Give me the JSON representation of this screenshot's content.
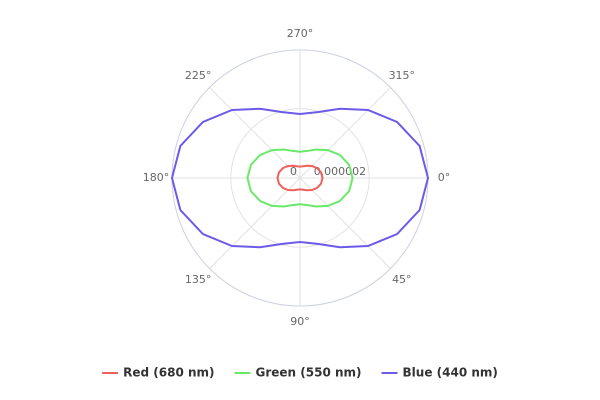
{
  "chart_data": {
    "type": "polar-line",
    "x": [
      0,
      15,
      30,
      45,
      60,
      75,
      90,
      105,
      120,
      135,
      150,
      165,
      180,
      195,
      210,
      225,
      240,
      255,
      270,
      285,
      300,
      315,
      330,
      345
    ],
    "xticks": [
      {
        "value": 0,
        "label": "0°"
      },
      {
        "value": 45,
        "label": "45°"
      },
      {
        "value": 90,
        "label": "90°"
      },
      {
        "value": 135,
        "label": "135°"
      },
      {
        "value": 180,
        "label": "180°"
      },
      {
        "value": 225,
        "label": "225°"
      },
      {
        "value": 270,
        "label": "270°"
      },
      {
        "value": 315,
        "label": "315°"
      }
    ],
    "rlim": [
      0,
      3.7e-06
    ],
    "rticks": [
      0,
      2e-06
    ],
    "grid": true,
    "legend": "bottom",
    "series": [
      {
        "name": "Red (680 nm)",
        "color": "#f0615b",
        "values": [
          6.5e-07,
          6.3e-07,
          5.7e-07,
          4.9e-07,
          4.1e-07,
          3.5e-07,
          3.3e-07,
          3.5e-07,
          4.1e-07,
          4.9e-07,
          5.7e-07,
          6.3e-07,
          6.5e-07,
          6.3e-07,
          5.7e-07,
          4.9e-07,
          4.1e-07,
          3.5e-07,
          3.3e-07,
          3.5e-07,
          4.1e-07,
          4.9e-07,
          5.7e-07,
          6.3e-07
        ]
      },
      {
        "name": "Green (550 nm)",
        "color": "#6ae868",
        "values": [
          1.52e-06,
          1.47e-06,
          1.33e-06,
          1.14e-06,
          9.5e-07,
          8.1e-07,
          7.6e-07,
          8.1e-07,
          9.5e-07,
          1.14e-06,
          1.33e-06,
          1.47e-06,
          1.52e-06,
          1.47e-06,
          1.33e-06,
          1.14e-06,
          9.5e-07,
          8.1e-07,
          7.6e-07,
          8.1e-07,
          9.5e-07,
          1.14e-06,
          1.33e-06,
          1.47e-06
        ]
      },
      {
        "name": "Blue (440 nm)",
        "color": "#6b5be8",
        "values": [
          3.7e-06,
          3.58e-06,
          3.24e-06,
          2.78e-06,
          2.31e-06,
          1.97e-06,
          1.85e-06,
          1.97e-06,
          2.31e-06,
          2.78e-06,
          3.24e-06,
          3.58e-06,
          3.7e-06,
          3.58e-06,
          3.24e-06,
          2.78e-06,
          2.31e-06,
          1.97e-06,
          1.85e-06,
          1.97e-06,
          2.31e-06,
          2.78e-06,
          3.24e-06,
          3.58e-06
        ]
      }
    ]
  }
}
